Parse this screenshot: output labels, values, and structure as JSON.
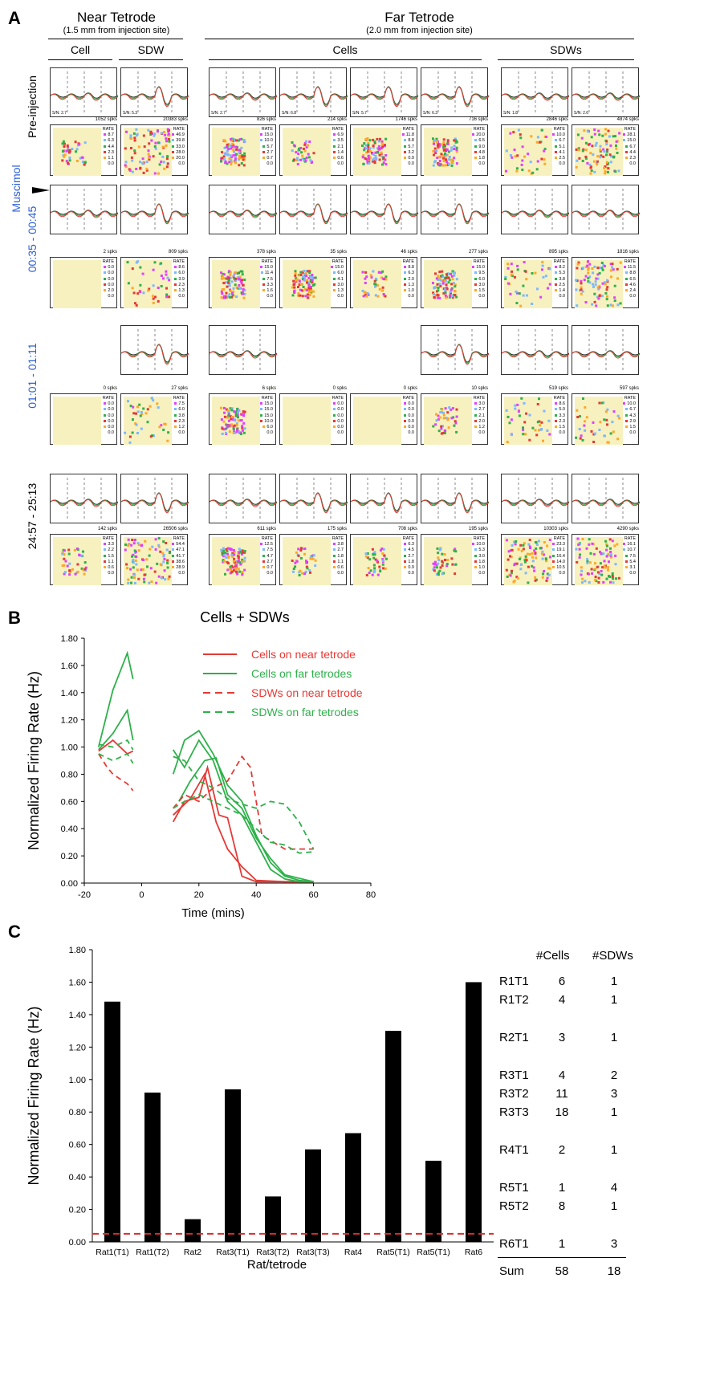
{
  "panel_a": {
    "label": "A",
    "near_title": "Near Tetrode",
    "near_sub": "(1.5 mm from injection site)",
    "far_title": "Far Tetrode",
    "far_sub": "(2.0 mm from injection site)",
    "col_cell": "Cell",
    "col_sdw": "SDW",
    "col_cells": "Cells",
    "col_sdws": "SDWs",
    "muscimol": "Muscimol",
    "rows": [
      {
        "label": "Pre-injection",
        "label_color": "#000000",
        "spikes": [
          "1052 spks",
          "20383 spks",
          "826 spks",
          "214 spks",
          "1746 spks",
          "716 spks",
          "2846 spks",
          "4874 spks"
        ],
        "sn": [
          "S/N: 2.7",
          "S/N: 5.3",
          "S/N: 2.7",
          "S/N: 6.8",
          "S/N: 5.7",
          "S/N: 6.3",
          "S/N: 1.8",
          "S/N: 2.6"
        ],
        "rates": [
          [
            "8.7",
            "6.3",
            "4.4",
            "2.3",
            "1.1",
            "0.0"
          ],
          [
            "46.9",
            "39.8",
            "33.0",
            "28.0",
            "20.0",
            "0.0"
          ],
          [
            "15.0",
            "10.0",
            "5.7",
            "2.7",
            "0.7",
            "0.0"
          ],
          [
            "6.9",
            "3.5",
            "2.1",
            "1.4",
            "0.6",
            "0.0"
          ],
          [
            "11.8",
            "8.8",
            "5.7",
            "3.2",
            "0.9",
            "0.0"
          ],
          [
            "20.0",
            "6.5",
            "9.0",
            "4.8",
            "1.8",
            "0.0"
          ],
          [
            "10.0",
            "6.7",
            "5.1",
            "4.1",
            "2.5",
            "0.0"
          ],
          [
            "28.1",
            "15.0",
            "6.7",
            "4.4",
            "2.3",
            "0.0"
          ]
        ]
      },
      {
        "label": "00:35 - 00:45",
        "label_color": "#2b5fd9",
        "spikes": [
          "2 spks",
          "809 spks",
          "378 spks",
          "35 spks",
          "46 spks",
          "277 spks",
          "895 spks",
          "1816 spks"
        ],
        "sn": [
          "",
          "",
          "",
          "",
          "",
          "",
          "",
          ""
        ],
        "rates": [
          [
            "0.0",
            "0.0",
            "0.0",
            "0.0",
            "2.0",
            "0.0"
          ],
          [
            "8.6",
            "6.0",
            "3.9",
            "2.3",
            "1.3",
            "0.0"
          ],
          [
            "15.0",
            "11.4",
            "7.5",
            "3.3",
            "1.6",
            "0.0"
          ],
          [
            "15.0",
            "6.0",
            "4.1",
            "3.0",
            "1.3",
            "0.0"
          ],
          [
            "8.8",
            "6.3",
            "2.0",
            "1.3",
            "1.0",
            "0.0"
          ],
          [
            "15.0",
            "9.5",
            "6.0",
            "3.0",
            "1.5",
            "0.0"
          ],
          [
            "8.2",
            "5.3",
            "3.8",
            "2.5",
            "1.4",
            "0.0"
          ],
          [
            "11.5",
            "8.8",
            "6.5",
            "4.6",
            "2.4",
            "0.0"
          ]
        ]
      },
      {
        "label": "01:01 - 01:11",
        "label_color": "#2b5fd9",
        "spikes": [
          "0 spks",
          "27 spks",
          "6 spks",
          "0 spks",
          "0 spks",
          "10 spks",
          "519 spks",
          "597 spks"
        ],
        "sn": [
          "",
          "",
          "",
          "",
          "",
          "",
          "",
          ""
        ],
        "rates": [
          [
            "0.0",
            "0.0",
            "0.0",
            "0.0",
            "0.0",
            "0.0"
          ],
          [
            "7.5",
            "6.0",
            "3.8",
            "2.3",
            "1.2",
            "0.0"
          ],
          [
            "15.0",
            "15.0",
            "15.0",
            "10.0",
            "6.0",
            "0.0"
          ],
          [
            "0.0",
            "0.0",
            "0.0",
            "0.0",
            "0.0",
            "0.0"
          ],
          [
            "0.0",
            "0.0",
            "0.0",
            "0.0",
            "0.0",
            "0.0"
          ],
          [
            "3.0",
            "2.7",
            "2.1",
            "2.0",
            "1.2",
            "0.0"
          ],
          [
            "8.6",
            "5.0",
            "3.3",
            "2.3",
            "1.5",
            "0.0"
          ],
          [
            "10.0",
            "6.7",
            "4.3",
            "2.9",
            "1.5",
            "0.0"
          ]
        ]
      },
      {
        "label": "24:57 - 25:13",
        "label_color": "#000000",
        "spikes": [
          "142 spks",
          "26506 spks",
          "611 spks",
          "175 spks",
          "708 spks",
          "195 spks",
          "10303 spks",
          "4290 spks"
        ],
        "sn": [
          "",
          "",
          "",
          "",
          "",
          "",
          "",
          ""
        ],
        "rates": [
          [
            "3.3",
            "2.2",
            "1.5",
            "1.1",
            "0.6",
            "0.0"
          ],
          [
            "54.4",
            "47.1",
            "41.7",
            "38.6",
            "28.9",
            "0.0"
          ],
          [
            "12.5",
            "7.5",
            "4.7",
            "2.7",
            "0.7",
            "0.0"
          ],
          [
            "3.8",
            "2.7",
            "1.8",
            "1.1",
            "0.6",
            "0.0"
          ],
          [
            "6.3",
            "4.5",
            "2.7",
            "1.8",
            "0.9",
            "0.0"
          ],
          [
            "10.0",
            "5.3",
            "3.0",
            "1.8",
            "1.0",
            "0.0"
          ],
          [
            "23.3",
            "19.1",
            "16.4",
            "14.0",
            "10.5",
            "0.0"
          ],
          [
            "16.1",
            "10.7",
            "7.5",
            "5.4",
            "3.1",
            "0.0"
          ]
        ]
      }
    ],
    "rate_header": "RATE",
    "legend_colors": [
      "#e040fb",
      "#7cb8ff",
      "#2db14a",
      "#e53935",
      "#ffa726",
      "#ffffff"
    ]
  },
  "chart_data": [
    {
      "type": "line",
      "panel": "B",
      "title": "Cells + SDWs",
      "xlabel": "Time (mins)",
      "ylabel": "Normalized Firing Rate (Hz)",
      "xlim": [
        -20,
        80
      ],
      "ylim": [
        0,
        1.8
      ],
      "xticks": [
        "-20",
        "0",
        "20",
        "40",
        "60",
        "80"
      ],
      "yticks": [
        "0.00",
        "0.20",
        "0.40",
        "0.60",
        "0.80",
        "1.00",
        "1.20",
        "1.40",
        "1.60",
        "1.80"
      ],
      "legend": [
        {
          "name": "Cells on near tetrode",
          "color": "#e53935",
          "dash": false
        },
        {
          "name": "Cells on far tetrodes",
          "color": "#2db14a",
          "dash": false
        },
        {
          "name": "SDWs on near tetrode",
          "color": "#e53935",
          "dash": true
        },
        {
          "name": "SDWs on far tetrodes",
          "color": "#2db14a",
          "dash": true
        }
      ],
      "series": [
        {
          "name": "Cells near A",
          "color": "#e53935",
          "dash": false,
          "x": [
            -15,
            -10,
            -5,
            -3
          ],
          "y": [
            0.97,
            1.05,
            0.95,
            0.97
          ]
        },
        {
          "name": "Cells near B",
          "color": "#e53935",
          "dash": false,
          "x": [
            11,
            15,
            20,
            23,
            27,
            30,
            35,
            40,
            45,
            50,
            55,
            60
          ],
          "y": [
            0.45,
            0.6,
            0.63,
            0.85,
            0.5,
            0.48,
            0.05,
            0.01,
            0.01,
            0.01,
            0.01,
            0.01
          ]
        },
        {
          "name": "Cells near C",
          "color": "#e53935",
          "dash": false,
          "x": [
            11,
            17,
            22,
            26,
            30,
            35,
            40,
            50,
            60
          ],
          "y": [
            0.5,
            0.62,
            0.8,
            0.45,
            0.25,
            0.12,
            0.02,
            0.01,
            0.01
          ]
        },
        {
          "name": "Cells far A",
          "color": "#2db14a",
          "dash": false,
          "x": [
            -15,
            -10,
            -5,
            -3
          ],
          "y": [
            1.0,
            1.42,
            1.69,
            1.5
          ]
        },
        {
          "name": "Cells far B",
          "color": "#2db14a",
          "dash": false,
          "x": [
            -15,
            -10,
            -5,
            -3
          ],
          "y": [
            0.98,
            1.1,
            1.27,
            1.05
          ]
        },
        {
          "name": "Cells far C",
          "color": "#2db14a",
          "dash": false,
          "x": [
            11,
            15,
            20,
            25,
            30,
            35,
            40,
            45,
            50,
            55,
            60
          ],
          "y": [
            0.8,
            1.05,
            1.12,
            0.95,
            0.72,
            0.6,
            0.35,
            0.15,
            0.05,
            0.02,
            0.01
          ]
        },
        {
          "name": "Cells far D",
          "color": "#2db14a",
          "dash": false,
          "x": [
            11,
            15,
            20,
            25,
            30,
            35,
            40,
            45,
            50,
            55,
            60
          ],
          "y": [
            0.98,
            0.85,
            1.05,
            0.9,
            0.6,
            0.5,
            0.3,
            0.1,
            0.03,
            0.01,
            0.01
          ]
        },
        {
          "name": "Cells far E",
          "color": "#2db14a",
          "dash": false,
          "x": [
            13,
            17,
            22,
            26,
            30,
            35,
            40,
            45,
            50,
            60
          ],
          "y": [
            0.6,
            0.75,
            0.9,
            0.92,
            0.65,
            0.55,
            0.33,
            0.18,
            0.06,
            0.01
          ]
        },
        {
          "name": "SDWs near A",
          "color": "#e53935",
          "dash": true,
          "x": [
            -15,
            -12,
            -10,
            -5,
            -3
          ],
          "y": [
            0.95,
            0.85,
            0.8,
            0.73,
            0.68
          ]
        },
        {
          "name": "SDWs near B",
          "color": "#e53935",
          "dash": true,
          "x": [
            11,
            15,
            20,
            25,
            30,
            35,
            38,
            42,
            50,
            60
          ],
          "y": [
            0.55,
            0.65,
            0.6,
            0.7,
            0.75,
            0.93,
            0.85,
            0.35,
            0.25,
            0.25
          ]
        },
        {
          "name": "SDWs far A",
          "color": "#2db14a",
          "dash": true,
          "x": [
            -15,
            -10,
            -5,
            -3
          ],
          "y": [
            0.95,
            0.9,
            0.95,
            0.88
          ]
        },
        {
          "name": "SDWs far B",
          "color": "#2db14a",
          "dash": true,
          "x": [
            -15,
            -10,
            -5,
            -3
          ],
          "y": [
            1.02,
            1.0,
            1.05,
            0.98
          ]
        },
        {
          "name": "SDWs far C",
          "color": "#2db14a",
          "dash": true,
          "x": [
            11,
            15,
            20,
            25,
            30,
            35,
            40,
            45,
            50,
            55,
            60
          ],
          "y": [
            0.93,
            0.9,
            0.75,
            0.7,
            0.62,
            0.58,
            0.55,
            0.6,
            0.58,
            0.45,
            0.25
          ]
        },
        {
          "name": "SDWs far D",
          "color": "#2db14a",
          "dash": true,
          "x": [
            11,
            15,
            20,
            25,
            30,
            35,
            40,
            45,
            50,
            55,
            60
          ],
          "y": [
            0.55,
            0.6,
            0.65,
            0.6,
            0.55,
            0.5,
            0.4,
            0.3,
            0.28,
            0.22,
            0.23
          ]
        }
      ]
    },
    {
      "type": "bar",
      "panel": "C",
      "xlabel": "Rat/tetrode",
      "ylabel": "Normalized Firing Rate (Hz)",
      "ylim": [
        0,
        1.8
      ],
      "yticks": [
        "0.00",
        "0.20",
        "0.40",
        "0.60",
        "0.80",
        "1.00",
        "1.20",
        "1.40",
        "1.60",
        "1.80"
      ],
      "categories": [
        "Rat1(T1)",
        "Rat1(T2)",
        "Rat2",
        "Rat3(T1)",
        "Rat3(T2)",
        "Rat3(T3)",
        "Rat4",
        "Rat5(T1)",
        "Rat5(T1)",
        "Rat6"
      ],
      "values": [
        1.48,
        0.92,
        0.14,
        0.94,
        0.28,
        0.57,
        0.67,
        1.3,
        0.5,
        1.6
      ],
      "baseline": 0.05,
      "baseline_color": "#d32f2f"
    }
  ],
  "panel_b_label": "B",
  "panel_c_label": "C",
  "table": {
    "headers": [
      "#Cells",
      "#SDWs"
    ],
    "rows": [
      {
        "id": "R1T1",
        "cells": "6",
        "sdws": "1"
      },
      {
        "id": "R1T2",
        "cells": "4",
        "sdws": "1"
      },
      {
        "id": "R2T1",
        "cells": "3",
        "sdws": "1"
      },
      {
        "id": "R3T1",
        "cells": "4",
        "sdws": "2"
      },
      {
        "id": "R3T2",
        "cells": "11",
        "sdws": "3"
      },
      {
        "id": "R3T3",
        "cells": "18",
        "sdws": "1"
      },
      {
        "id": "R4T1",
        "cells": "2",
        "sdws": "1"
      },
      {
        "id": "R5T1",
        "cells": "1",
        "sdws": "4"
      },
      {
        "id": "R5T2",
        "cells": "8",
        "sdws": "1"
      },
      {
        "id": "R6T1",
        "cells": "1",
        "sdws": "3"
      }
    ],
    "sum_label": "Sum",
    "sum_cells": "58",
    "sum_sdws": "18"
  }
}
